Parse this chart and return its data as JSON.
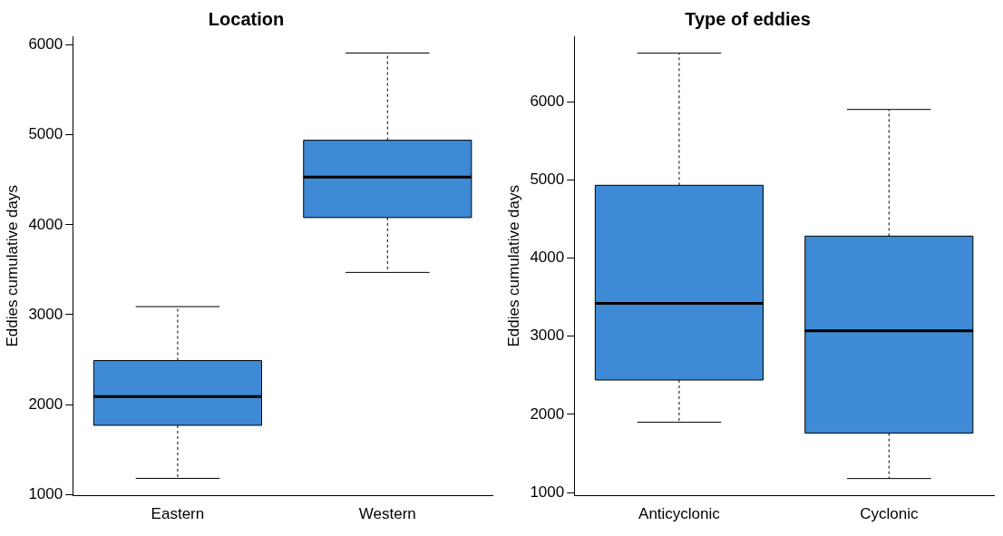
{
  "chart_data": [
    {
      "type": "box",
      "title": "Location",
      "ylabel": "Eddies cumulative days",
      "categories": [
        "Eastern",
        "Western"
      ],
      "color": "#3f8ad4",
      "boxes": [
        {
          "low": 1180,
          "q1": 1770,
          "median": 2090,
          "q3": 2490,
          "high": 3090
        },
        {
          "low": 3470,
          "q1": 4080,
          "median": 4530,
          "q3": 4940,
          "high": 5910
        }
      ],
      "ylim": [
        987,
        6096
      ],
      "yticks": [
        1000,
        2000,
        3000,
        4000,
        5000,
        6000
      ],
      "grid": false
    },
    {
      "type": "box",
      "title": "Type of eddies",
      "ylabel": "Eddies cumulative days",
      "categories": [
        "Anticyclonic",
        "Cyclonic"
      ],
      "color": "#3f8ad4",
      "boxes": [
        {
          "low": 1900,
          "q1": 2440,
          "median": 3420,
          "q3": 4930,
          "high": 6620
        },
        {
          "low": 1180,
          "q1": 1760,
          "median": 3070,
          "q3": 4280,
          "high": 5900
        }
      ],
      "ylim": [
        960,
        6836
      ],
      "yticks": [
        1000,
        2000,
        3000,
        4000,
        5000,
        6000
      ],
      "grid": false
    }
  ]
}
